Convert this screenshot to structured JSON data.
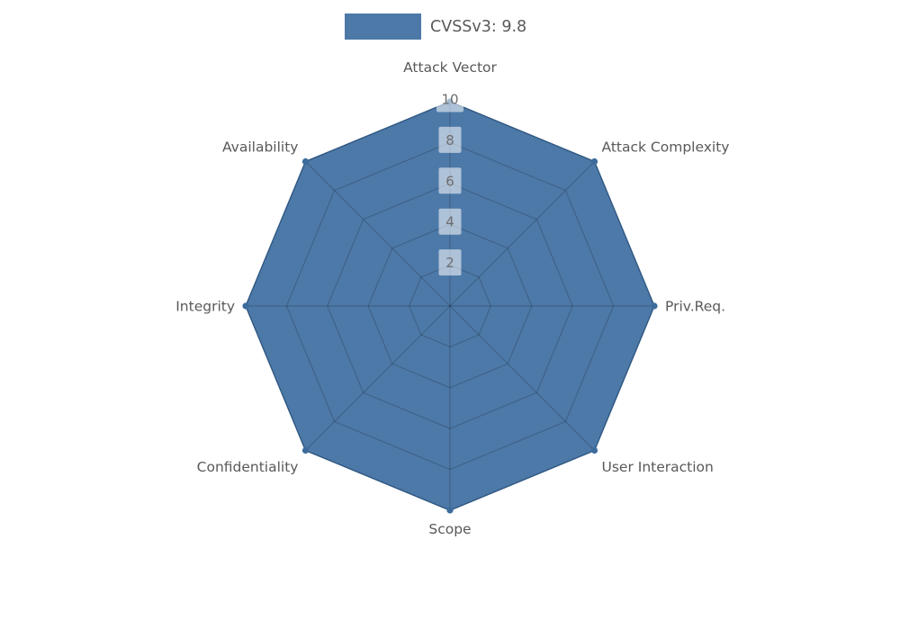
{
  "page": {
    "background_color": "#ffffff"
  },
  "legend": {
    "label": "CVSSv3: 9.8",
    "swatch_color": "#4d79a8"
  },
  "chart_data": {
    "type": "radar",
    "title": "",
    "categories": [
      "Attack Vector",
      "Attack Complexity",
      "Priv.Req.",
      "User Interaction",
      "Scope",
      "Confidentiality",
      "Integrity",
      "Availability"
    ],
    "series": [
      {
        "name": "CVSSv3: 9.8",
        "values": [
          10,
          10,
          10,
          10,
          10,
          10,
          10,
          10
        ]
      }
    ],
    "radial_ticks": [
      2,
      4,
      6,
      8,
      10
    ],
    "rlim": [
      0,
      10
    ],
    "grid": true,
    "num_axes": 8,
    "legend_position": "top-center",
    "colors": {
      "fill": "#4d79a8",
      "edge": "#3c6b9c",
      "marker": "#3c6b9c",
      "grid": "rgba(0,0,0,0.18)",
      "axis_label": "#595959",
      "tick_label": "#6e6e6e",
      "tick_box": "rgba(255,255,255,0.55)"
    }
  }
}
